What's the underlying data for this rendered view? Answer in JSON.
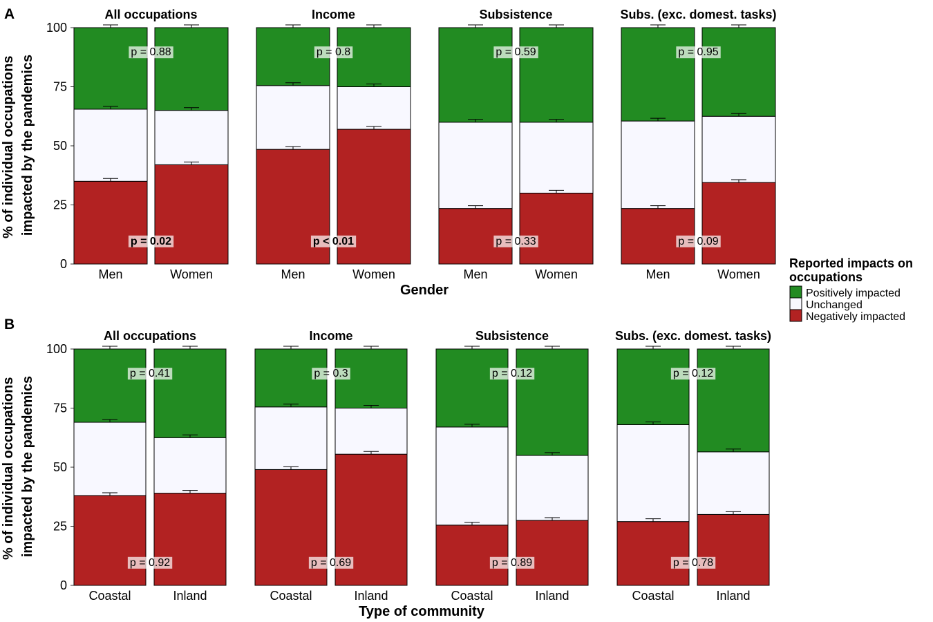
{
  "chart_data": {
    "type": "bar",
    "stacked": true,
    "colors": {
      "Positively impacted": "#228B22",
      "Unchanged": "#F8F8FF",
      "Negatively impacted": "#B22222"
    },
    "legend": {
      "title_line1": "Reported impacts on",
      "title_line2": "occupations",
      "entries": [
        "Positively impacted",
        "Unchanged",
        "Negatively impacted"
      ],
      "placement": "right"
    },
    "ylabel_line1": "% of individual occupations",
    "ylabel_line2": "impacted by the pandemics",
    "ylim": [
      0,
      100
    ],
    "yticks": [
      0,
      25,
      50,
      75,
      100
    ],
    "grid": false,
    "panels": [
      {
        "letter": "A",
        "xlabel": "Gender",
        "facets": [
          {
            "title": "All occupations",
            "categories": [
              "Men",
              "Women"
            ],
            "series": [
              {
                "name": "Negatively impacted",
                "values": [
                  35,
                  42
                ]
              },
              {
                "name": "Unchanged",
                "values": [
                  30.5,
                  23
                ]
              },
              {
                "name": "Positively impacted",
                "values": [
                  34.5,
                  35
                ]
              }
            ],
            "p_top": "p = 0.88",
            "p_top_sig": false,
            "p_bottom": "p = 0.02",
            "p_bottom_sig": true
          },
          {
            "title": "Income",
            "categories": [
              "Men",
              "Women"
            ],
            "series": [
              {
                "name": "Negatively impacted",
                "values": [
                  48.5,
                  57
                ]
              },
              {
                "name": "Unchanged",
                "values": [
                  27,
                  18
                ]
              },
              {
                "name": "Positively impacted",
                "values": [
                  24.5,
                  25
                ]
              }
            ],
            "p_top": "p = 0.8",
            "p_top_sig": false,
            "p_bottom": "p < 0.01",
            "p_bottom_sig": true
          },
          {
            "title": "Subsistence",
            "categories": [
              "Men",
              "Women"
            ],
            "series": [
              {
                "name": "Negatively impacted",
                "values": [
                  23.5,
                  30
                ]
              },
              {
                "name": "Unchanged",
                "values": [
                  36.5,
                  30
                ]
              },
              {
                "name": "Positively impacted",
                "values": [
                  40,
                  40
                ]
              }
            ],
            "p_top": "p = 0.59",
            "p_top_sig": false,
            "p_bottom": "p = 0.33",
            "p_bottom_sig": false
          },
          {
            "title": "Subs. (exc. domest. tasks)",
            "categories": [
              "Men",
              "Women"
            ],
            "series": [
              {
                "name": "Negatively impacted",
                "values": [
                  23.5,
                  34.5
                ]
              },
              {
                "name": "Unchanged",
                "values": [
                  37,
                  28
                ]
              },
              {
                "name": "Positively impacted",
                "values": [
                  39.5,
                  37.5
                ]
              }
            ],
            "p_top": "p = 0.95",
            "p_top_sig": false,
            "p_bottom": "p = 0.09",
            "p_bottom_sig": false
          }
        ]
      },
      {
        "letter": "B",
        "xlabel": "Type of community",
        "facets": [
          {
            "title": "All occupations",
            "categories": [
              "Coastal",
              "Inland"
            ],
            "series": [
              {
                "name": "Negatively impacted",
                "values": [
                  38,
                  39
                ]
              },
              {
                "name": "Unchanged",
                "values": [
                  31,
                  23.5
                ]
              },
              {
                "name": "Positively impacted",
                "values": [
                  31,
                  37.5
                ]
              }
            ],
            "p_top": "p = 0.41",
            "p_top_sig": false,
            "p_bottom": "p = 0.92",
            "p_bottom_sig": false
          },
          {
            "title": "Income",
            "categories": [
              "Coastal",
              "Inland"
            ],
            "series": [
              {
                "name": "Negatively impacted",
                "values": [
                  49,
                  55.5
                ]
              },
              {
                "name": "Unchanged",
                "values": [
                  26.5,
                  19.5
                ]
              },
              {
                "name": "Positively impacted",
                "values": [
                  24.5,
                  25
                ]
              }
            ],
            "p_top": "p = 0.3",
            "p_top_sig": false,
            "p_bottom": "p = 0.69",
            "p_bottom_sig": false
          },
          {
            "title": "Subsistence",
            "categories": [
              "Coastal",
              "Inland"
            ],
            "series": [
              {
                "name": "Negatively impacted",
                "values": [
                  25.5,
                  27.5
                ]
              },
              {
                "name": "Unchanged",
                "values": [
                  41.5,
                  27.5
                ]
              },
              {
                "name": "Positively impacted",
                "values": [
                  33,
                  45
                ]
              }
            ],
            "p_top": "p = 0.12",
            "p_top_sig": false,
            "p_bottom": "p = 0.89",
            "p_bottom_sig": false
          },
          {
            "title": "Subs. (exc. domest. tasks)",
            "categories": [
              "Coastal",
              "Inland"
            ],
            "series": [
              {
                "name": "Negatively impacted",
                "values": [
                  27,
                  30
                ]
              },
              {
                "name": "Unchanged",
                "values": [
                  41,
                  26.5
                ]
              },
              {
                "name": "Positively impacted",
                "values": [
                  32,
                  43.5
                ]
              }
            ],
            "p_top": "p = 0.12",
            "p_top_sig": false,
            "p_bottom": "p = 0.78",
            "p_bottom_sig": false
          }
        ]
      }
    ]
  }
}
